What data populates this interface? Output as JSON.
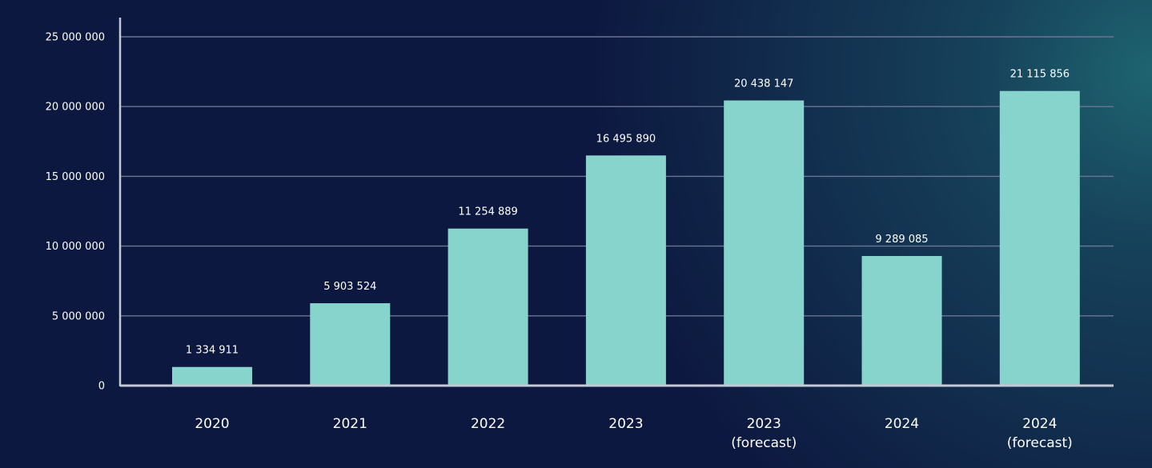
{
  "colors": {
    "background": "#0d1840",
    "background_glow": "#1e6470",
    "bar": "#86d4cc",
    "grid": "#6b7594",
    "axis": "#c4c9d6",
    "text": "#ffffff"
  },
  "chart_data": {
    "type": "bar",
    "title": "",
    "xlabel": "",
    "ylabel": "",
    "ylim": [
      0,
      25000000
    ],
    "yticks": [
      0,
      5000000,
      10000000,
      15000000,
      20000000,
      25000000
    ],
    "ytick_labels": [
      "0",
      "5 000 000",
      "10 000 000",
      "15 000 000",
      "20 000 000",
      "25 000 000"
    ],
    "grid": true,
    "legend": "none",
    "categories": [
      [
        "2020"
      ],
      [
        "2021"
      ],
      [
        "2022"
      ],
      [
        "2023"
      ],
      [
        "2023",
        "(forecast)"
      ],
      [
        "2024"
      ],
      [
        "2024",
        "(forecast)"
      ]
    ],
    "values": [
      1334911,
      5903524,
      11254889,
      16495890,
      20438147,
      9289085,
      21115856
    ],
    "value_labels": [
      "1 334 911",
      "5 903 524",
      "11 254 889",
      "16 495 890",
      "20 438 147",
      "9 289 085",
      "21 115 856"
    ]
  }
}
